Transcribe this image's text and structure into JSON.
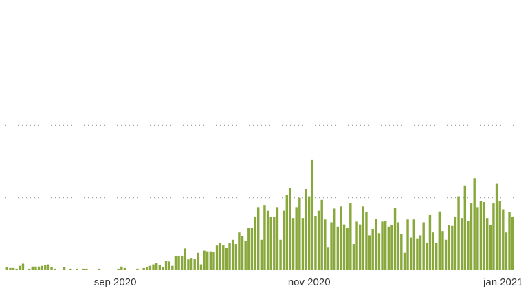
{
  "chart_data": {
    "type": "bar",
    "color": "#88a83c",
    "grid": true,
    "ylim": [
      0,
      300
    ],
    "yticks": [
      100,
      200
    ],
    "categories": [
      null,
      null,
      null,
      null,
      null,
      null,
      null,
      null,
      null,
      null,
      null,
      null,
      null,
      null,
      null,
      null,
      null,
      null,
      null,
      null,
      null,
      null,
      null,
      null,
      null,
      null,
      null,
      null,
      null,
      null,
      null,
      null,
      null,
      null,
      "sep 2020",
      null,
      null,
      null,
      null,
      null,
      null,
      null,
      null,
      null,
      null,
      null,
      null,
      null,
      null,
      null,
      null,
      null,
      null,
      null,
      null,
      null,
      null,
      null,
      null,
      null,
      null,
      null,
      null,
      null,
      null,
      null,
      null,
      null,
      null,
      null,
      null,
      null,
      null,
      null,
      null,
      null,
      null,
      null,
      null,
      null,
      null,
      null,
      null,
      null,
      null,
      null,
      null,
      null,
      null,
      null,
      null,
      null,
      null,
      null,
      null,
      "nov 2020",
      null,
      null,
      null,
      null,
      null,
      null,
      null,
      null,
      null,
      null,
      null,
      null,
      null,
      null,
      null,
      null,
      null,
      null,
      null,
      null,
      null,
      null,
      null,
      null,
      null,
      null,
      null,
      null,
      null,
      null,
      null,
      null,
      null,
      null,
      null,
      null,
      null,
      null,
      null,
      null,
      null,
      null,
      null,
      null,
      null,
      null,
      null,
      null,
      null,
      null,
      null,
      null,
      null,
      null,
      null,
      null,
      null,
      null,
      null,
      null,
      "jan 2021",
      null,
      null,
      null
    ],
    "values": [
      4,
      3,
      3,
      2,
      6,
      9,
      0,
      2,
      5,
      5,
      5,
      6,
      7,
      8,
      4,
      2,
      0,
      0,
      4,
      0,
      2,
      0,
      2,
      0,
      2,
      2,
      0,
      0,
      0,
      2,
      0,
      0,
      0,
      0,
      0,
      2,
      5,
      3,
      0,
      0,
      0,
      2,
      0,
      3,
      4,
      6,
      8,
      10,
      7,
      4,
      13,
      12,
      6,
      20,
      20,
      20,
      30,
      15,
      17,
      16,
      24,
      8,
      27,
      26,
      26,
      25,
      34,
      38,
      35,
      31,
      37,
      42,
      36,
      52,
      47,
      40,
      58,
      58,
      74,
      87,
      42,
      90,
      82,
      74,
      74,
      87,
      42,
      82,
      104,
      113,
      72,
      87,
      100,
      72,
      112,
      102,
      152,
      75,
      82,
      97,
      70,
      32,
      66,
      85,
      60,
      88,
      63,
      58,
      92,
      36,
      67,
      63,
      88,
      80,
      48,
      57,
      71,
      51,
      67,
      68,
      60,
      62,
      86,
      66,
      50,
      24,
      70,
      45,
      70,
      44,
      48,
      66,
      38,
      76,
      52,
      38,
      81,
      54,
      42,
      62,
      61,
      74,
      102,
      72,
      117,
      68,
      92,
      127,
      87,
      95,
      94,
      72,
      62,
      92,
      120,
      95,
      84,
      52,
      80,
      74
    ]
  }
}
